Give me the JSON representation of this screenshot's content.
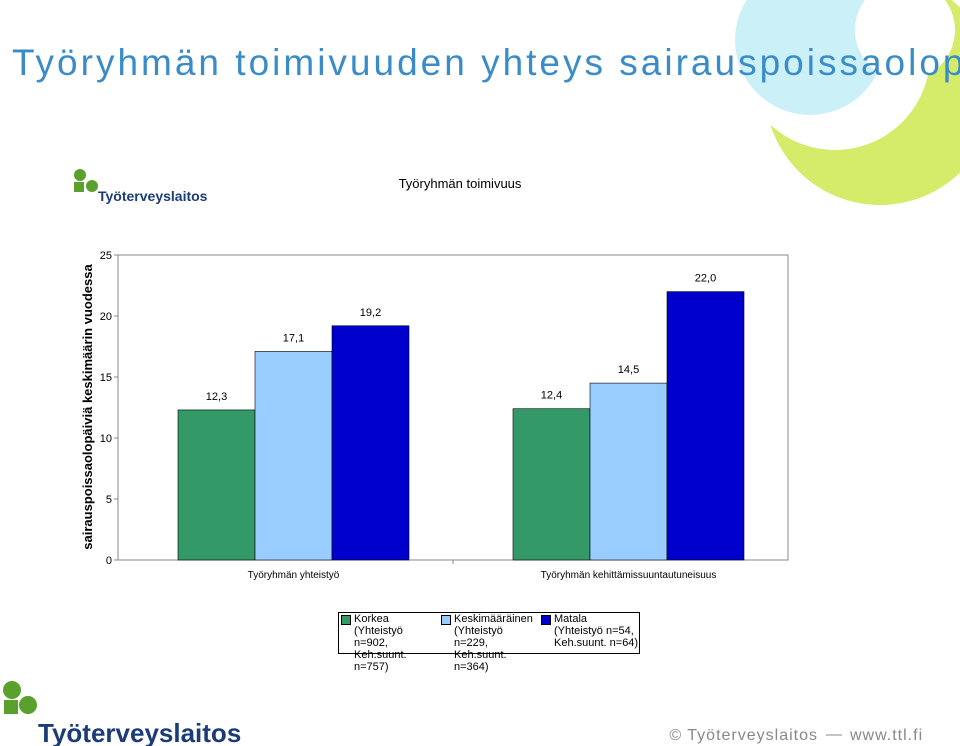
{
  "page_title": "Työryhmän toimivuuden yhteys sairauspoissaolopäivien määrään",
  "logo": "Työterveyslaitos",
  "footer": {
    "copyright": "© Työterveyslaitos",
    "url": "www.ttl.fi"
  },
  "chart_data": {
    "type": "bar",
    "title": "Työryhmän toimivuus",
    "y_label": "sairauspoissaolopäiviä keskimäärin vuodessa",
    "categories": [
      "Työryhmän yhteistyö",
      "Työryhmän kehittämissuuntautuneisuus"
    ],
    "series": [
      {
        "name": "Korkea\n(Yhteistyö n=902,\nKeh.suunt. n=757)",
        "color": "#339966",
        "values": [
          12.3,
          12.4
        ],
        "value_labels": [
          "12,3",
          "12,4"
        ]
      },
      {
        "name": "Keskimääräinen\n(Yhteistyö n=229,\nKeh.suunt. n=364)",
        "color": "#99ccff",
        "values": [
          17.1,
          14.5
        ],
        "value_labels": [
          "17,1",
          "14,5"
        ]
      },
      {
        "name": "Matala\n(Yhteistyö n=54,\nKeh.suunt. n=64)",
        "color": "#0000cc",
        "values": [
          19.2,
          22.0
        ],
        "value_labels": [
          "19,2",
          "22,0"
        ]
      }
    ],
    "ylim": [
      0,
      25
    ],
    "yticks": [
      0,
      5,
      10,
      15,
      20,
      25
    ],
    "grid": false
  }
}
